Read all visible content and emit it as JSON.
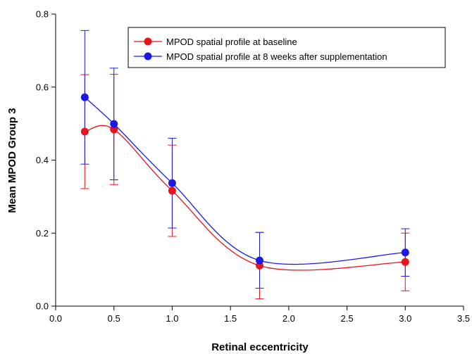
{
  "chart_data": {
    "type": "line",
    "xlabel": "Retinal eccentricity",
    "ylabel": "Mean MPOD Group 3",
    "xlim": [
      0.0,
      3.5
    ],
    "ylim": [
      0.0,
      0.8
    ],
    "xticks": [
      0.0,
      0.5,
      1.0,
      1.5,
      2.0,
      2.5,
      3.0,
      3.5
    ],
    "yticks": [
      0.0,
      0.2,
      0.4,
      0.6,
      0.8
    ],
    "xtick_labels": [
      "0.0",
      "0.5",
      "1.0",
      "1.5",
      "2.0",
      "2.5",
      "3.0",
      "3.5"
    ],
    "ytick_labels": [
      "0.0",
      "0.2",
      "0.4",
      "0.6",
      "0.8"
    ],
    "grid": false,
    "legend_position": "top-right",
    "x": [
      0.25,
      0.5,
      1.0,
      1.75,
      3.0
    ],
    "series": [
      {
        "name": "MPOD spatial profile at baseline",
        "color": "#e8141b",
        "values": [
          0.478,
          0.484,
          0.316,
          0.111,
          0.121
        ],
        "error_low": [
          0.322,
          0.333,
          0.191,
          0.02,
          0.042
        ],
        "error_high": [
          0.634,
          0.635,
          0.441,
          0.202,
          0.2
        ]
      },
      {
        "name": "MPOD spatial profile at 8 weeks after supplementation",
        "color": "#1a1ae6",
        "values": [
          0.572,
          0.499,
          0.337,
          0.125,
          0.147
        ],
        "error_low": [
          0.389,
          0.346,
          0.214,
          0.049,
          0.082
        ],
        "error_high": [
          0.755,
          0.652,
          0.46,
          0.202,
          0.212
        ]
      }
    ]
  }
}
